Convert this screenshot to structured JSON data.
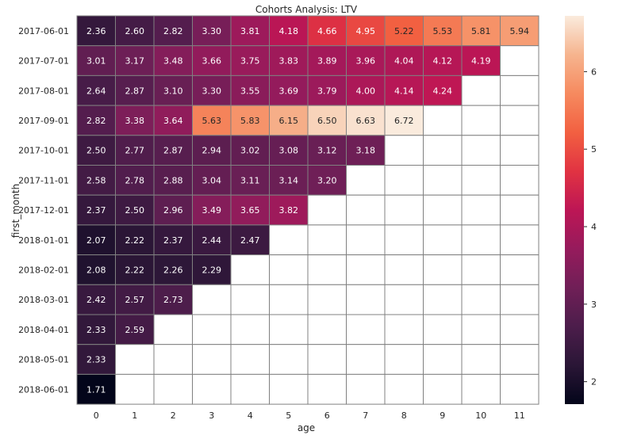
{
  "chart_data": {
    "type": "heatmap",
    "title": "Cohorts Analysis: LTV",
    "xlabel": "age",
    "ylabel": "first_month",
    "x_categories": [
      "0",
      "1",
      "2",
      "3",
      "4",
      "5",
      "6",
      "7",
      "8",
      "9",
      "10",
      "11"
    ],
    "y_categories": [
      "2017-06-01",
      "2017-07-01",
      "2017-08-01",
      "2017-09-01",
      "2017-10-01",
      "2017-11-01",
      "2017-12-01",
      "2018-01-01",
      "2018-02-01",
      "2018-03-01",
      "2018-04-01",
      "2018-05-01",
      "2018-06-01"
    ],
    "values": [
      [
        2.36,
        2.6,
        2.82,
        3.3,
        3.81,
        4.18,
        4.66,
        4.95,
        5.22,
        5.53,
        5.81,
        5.94
      ],
      [
        3.01,
        3.17,
        3.48,
        3.66,
        3.75,
        3.83,
        3.89,
        3.96,
        4.04,
        4.12,
        4.19,
        null
      ],
      [
        2.64,
        2.87,
        3.1,
        3.3,
        3.55,
        3.69,
        3.79,
        4.0,
        4.14,
        4.24,
        null,
        null
      ],
      [
        2.82,
        3.38,
        3.64,
        5.63,
        5.83,
        6.15,
        6.5,
        6.63,
        6.72,
        null,
        null,
        null
      ],
      [
        2.5,
        2.77,
        2.87,
        2.94,
        3.02,
        3.08,
        3.12,
        3.18,
        null,
        null,
        null,
        null
      ],
      [
        2.58,
        2.78,
        2.88,
        3.04,
        3.11,
        3.14,
        3.2,
        null,
        null,
        null,
        null,
        null
      ],
      [
        2.37,
        2.5,
        2.96,
        3.49,
        3.65,
        3.82,
        null,
        null,
        null,
        null,
        null,
        null
      ],
      [
        2.07,
        2.22,
        2.37,
        2.44,
        2.47,
        null,
        null,
        null,
        null,
        null,
        null,
        null
      ],
      [
        2.08,
        2.22,
        2.26,
        2.29,
        null,
        null,
        null,
        null,
        null,
        null,
        null,
        null
      ],
      [
        2.42,
        2.57,
        2.73,
        null,
        null,
        null,
        null,
        null,
        null,
        null,
        null,
        null
      ],
      [
        2.33,
        2.59,
        null,
        null,
        null,
        null,
        null,
        null,
        null,
        null,
        null,
        null
      ],
      [
        2.33,
        null,
        null,
        null,
        null,
        null,
        null,
        null,
        null,
        null,
        null,
        null
      ],
      [
        1.71,
        null,
        null,
        null,
        null,
        null,
        null,
        null,
        null,
        null,
        null,
        null
      ]
    ],
    "value_format": "0.00",
    "color_scale": {
      "name": "rocket",
      "vmin": 1.71,
      "vmax": 6.72,
      "stops": [
        "#03051a",
        "#2a1636",
        "#4c1d4b",
        "#701f57",
        "#961b5c",
        "#bd1655",
        "#e13342",
        "#f26041",
        "#f68a5f",
        "#f6b48e",
        "#faebdd"
      ]
    },
    "colorbar_ticks": [
      2,
      3,
      4,
      5,
      6
    ],
    "cell_border_color": "#808080",
    "missing_cell_color": "#ffffff",
    "grid": false,
    "legend": "colorbar-right"
  }
}
